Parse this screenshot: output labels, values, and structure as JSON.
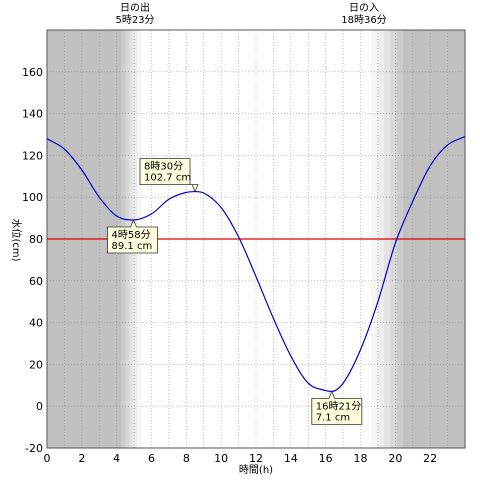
{
  "chart_data": {
    "type": "line",
    "xlabel": "時間(h)",
    "ylabel": "水位(cm)",
    "xlim": [
      0,
      24
    ],
    "ylim": [
      -20,
      180
    ],
    "x_ticks": [
      0,
      2,
      4,
      6,
      8,
      10,
      12,
      14,
      16,
      18,
      20,
      22
    ],
    "y_ticks": [
      -20,
      0,
      20,
      40,
      60,
      80,
      100,
      120,
      140,
      160
    ],
    "grid": true,
    "reference_line": 80,
    "sunrise": {
      "title": "日の出",
      "time_label": "5時23分",
      "hour": 5.383
    },
    "sunset": {
      "title": "日の入",
      "time_label": "18時36分",
      "hour": 18.6
    },
    "series": [
      {
        "x": [
          0,
          1,
          2,
          3,
          4,
          4.967,
          6,
          7,
          8,
          8.5,
          9,
          10,
          11,
          12,
          13,
          14,
          15,
          16,
          16.35,
          17,
          18,
          19,
          20,
          21,
          22,
          23,
          24
        ],
        "y": [
          128,
          123,
          113,
          100,
          91,
          89.1,
          92,
          99,
          102.3,
          102.7,
          102,
          95,
          81,
          62,
          42,
          24,
          11,
          7.5,
          7.1,
          11,
          27,
          50,
          78,
          98,
          115,
          125,
          129
        ]
      }
    ],
    "annotations": [
      {
        "label": "8時30分",
        "value_label": "102.7 cm",
        "x": 8.5,
        "y": 102.7
      },
      {
        "label": "4時58分",
        "value_label": "89.1 cm",
        "x": 4.967,
        "y": 89.1
      },
      {
        "label": "16時21分",
        "value_label": "7.1 cm",
        "x": 16.35,
        "y": 7.1
      }
    ],
    "colors": {
      "line": "#0000cc",
      "reference": "#dd0000",
      "night": "#c0c0c0",
      "day": "#ffffff",
      "callout_fill": "#ffffdd"
    }
  }
}
